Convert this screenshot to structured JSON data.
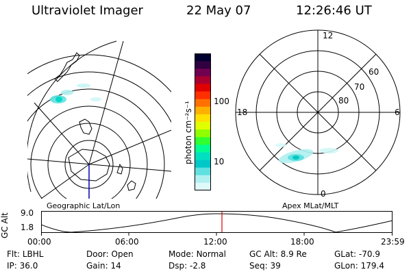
{
  "header": {
    "instrument": "Ultraviolet Imager",
    "date": "22 May 07",
    "time": "12:26:46 UT"
  },
  "left_map": {
    "label": "Geographic Lat/Lon"
  },
  "right_map": {
    "label": "Apex MLat/MLT",
    "mlt_labels": {
      "top": "12",
      "left": "18",
      "right": "6",
      "bottom": "0"
    },
    "lat_labels": [
      "60",
      "70",
      "80"
    ]
  },
  "colorbar": {
    "unit_label": "photon cm⁻²s⁻¹",
    "ticks": [
      "100",
      "10"
    ],
    "colors": [
      "#000030",
      "#300040",
      "#700050",
      "#aa0030",
      "#e00000",
      "#ff3000",
      "#ff7000",
      "#ffb000",
      "#ffe000",
      "#e0ff00",
      "#90ff00",
      "#30ff30",
      "#00ff90",
      "#00e0c0",
      "#00c8c8",
      "#60e0e0",
      "#b0f0f0",
      "#e0fafa"
    ]
  },
  "orbit_plot": {
    "ylabel": "GC Alt",
    "yticks": [
      "9.0",
      "1.8"
    ],
    "xticks": [
      "00:00",
      "06:00",
      "12:00",
      "18:00",
      "23:59"
    ]
  },
  "status": {
    "row1": [
      {
        "key": "Flt:",
        "value": "LBHL"
      },
      {
        "key": "Door:",
        "value": "Open"
      },
      {
        "key": "Mode:",
        "value": "Normal"
      },
      {
        "key": "GC Alt:",
        "value": "8.9 Re"
      },
      {
        "key": "GLat:",
        "value": "-70.9"
      }
    ],
    "row2": [
      {
        "key": "IP:",
        "value": "36.0"
      },
      {
        "key": "Gain:",
        "value": "14"
      },
      {
        "key": "Dsp:",
        "value": "-2.8"
      },
      {
        "key": "Seq:",
        "value": "39"
      },
      {
        "key": "GLon:",
        "value": "179.4"
      }
    ]
  }
}
